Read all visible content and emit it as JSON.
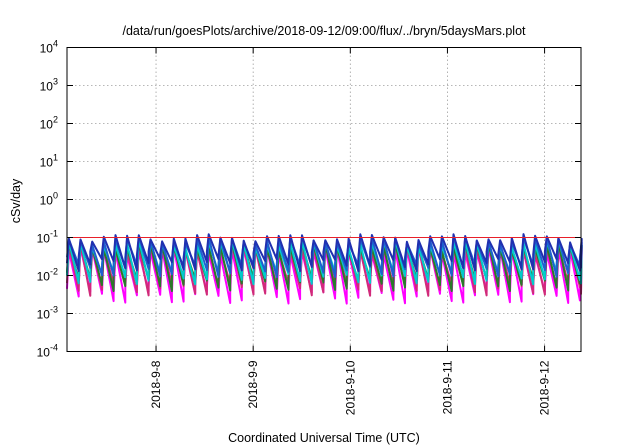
{
  "chart_data": {
    "type": "line",
    "title": "/data/run/goesPlots/archive/2018-09-12/09:00/flux/../bryn/5daysMars.plot",
    "xlabel": "Coordinated Universal Time (UTC)",
    "ylabel": "cSv/day",
    "x_range": [
      "2018-09-07T02:00",
      "2018-09-12T09:00"
    ],
    "x_ticks": [
      "2018-9-8",
      "2018-9-9",
      "2018-9-10",
      "2018-9-11",
      "2018-9-12"
    ],
    "y_scale": "log",
    "ylim": [
      0.0001,
      10000
    ],
    "y_ticks": [
      {
        "base": "10",
        "exp": "-4"
      },
      {
        "base": "10",
        "exp": "-3"
      },
      {
        "base": "10",
        "exp": "-2"
      },
      {
        "base": "10",
        "exp": "-1"
      },
      {
        "base": "10",
        "exp": "0"
      },
      {
        "base": "10",
        "exp": "1"
      },
      {
        "base": "10",
        "exp": "2"
      },
      {
        "base": "10",
        "exp": "3"
      },
      {
        "base": "10",
        "exp": "4"
      }
    ],
    "reference_line": {
      "y": 0.1,
      "color": "#e8202a"
    },
    "grid": true,
    "sawtooth_period_hours": 2.88,
    "series": [
      {
        "color": "#ff00ff",
        "peak": 0.045,
        "trough": 0.0028
      },
      {
        "color": "#d12a7a",
        "peak": 0.055,
        "trough": 0.0045
      },
      {
        "color": "#2a7a2a",
        "peak": 0.06,
        "trough": 0.006
      },
      {
        "color": "#00cccc",
        "peak": 0.07,
        "trough": 0.009
      },
      {
        "color": "#1f5fd0",
        "peak": 0.085,
        "trough": 0.014
      },
      {
        "color": "#2030b0",
        "peak": 0.1,
        "trough": 0.02
      }
    ]
  }
}
